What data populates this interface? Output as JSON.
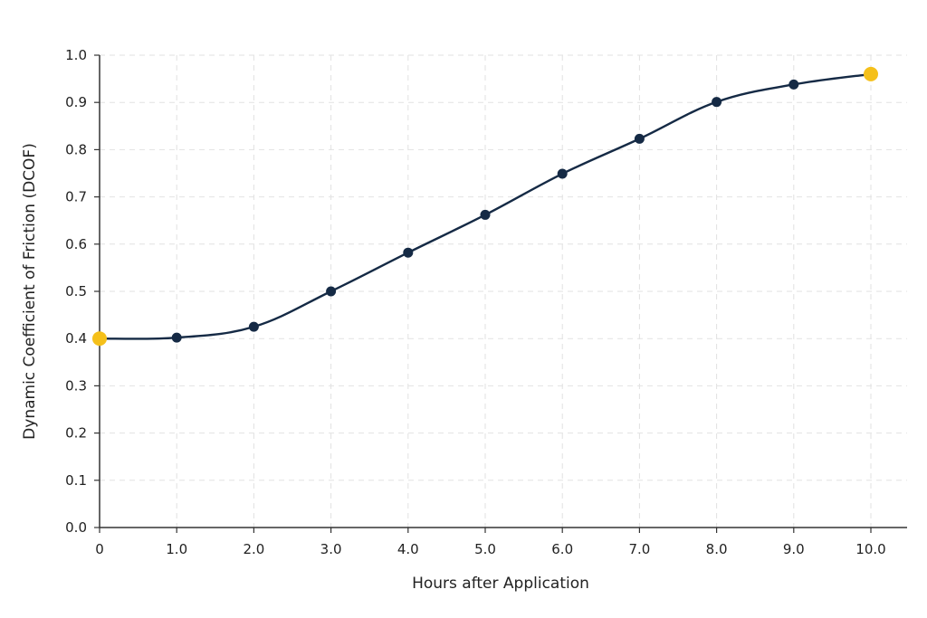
{
  "chart_data": {
    "type": "line",
    "title": "",
    "xlabel": "Hours after Application",
    "ylabel": "Dynamic Coefficient of Friction (DCOF)",
    "xlim": [
      0,
      10
    ],
    "ylim": [
      0,
      1.0
    ],
    "x_ticks": [
      {
        "value": 0,
        "label": "0"
      },
      {
        "value": 1,
        "label": "1.0"
      },
      {
        "value": 2,
        "label": "2.0"
      },
      {
        "value": 3,
        "label": "3.0"
      },
      {
        "value": 4,
        "label": "4.0"
      },
      {
        "value": 5,
        "label": "5.0"
      },
      {
        "value": 6,
        "label": "6.0"
      },
      {
        "value": 7,
        "label": "7.0"
      },
      {
        "value": 8,
        "label": "8.0"
      },
      {
        "value": 9,
        "label": "9.0"
      },
      {
        "value": 10,
        "label": "10.0"
      }
    ],
    "y_ticks": [
      {
        "value": 0.0,
        "label": "0.0"
      },
      {
        "value": 0.1,
        "label": "0.1"
      },
      {
        "value": 0.2,
        "label": "0.2"
      },
      {
        "value": 0.3,
        "label": "0.3"
      },
      {
        "value": 0.4,
        "label": "0.4"
      },
      {
        "value": 0.5,
        "label": "0.5"
      },
      {
        "value": 0.6,
        "label": "0.6"
      },
      {
        "value": 0.7,
        "label": "0.7"
      },
      {
        "value": 0.8,
        "label": "0.8"
      },
      {
        "value": 0.9,
        "label": "0.9"
      },
      {
        "value": 1.0,
        "label": "1.0"
      }
    ],
    "grid": true,
    "series": [
      {
        "x": [
          0,
          1,
          2,
          3,
          4,
          5,
          6,
          7,
          8,
          9,
          10
        ],
        "y": [
          0.4,
          0.402,
          0.425,
          0.5,
          0.582,
          0.662,
          0.749,
          0.823,
          0.901,
          0.938,
          0.96
        ],
        "highlight_indices": [
          0,
          10
        ]
      }
    ],
    "colors": {
      "line": "#152a45",
      "marker": "#152a45",
      "highlight": "#f5c01a",
      "axis": "#333333",
      "grid": "#e2e2e2"
    }
  }
}
